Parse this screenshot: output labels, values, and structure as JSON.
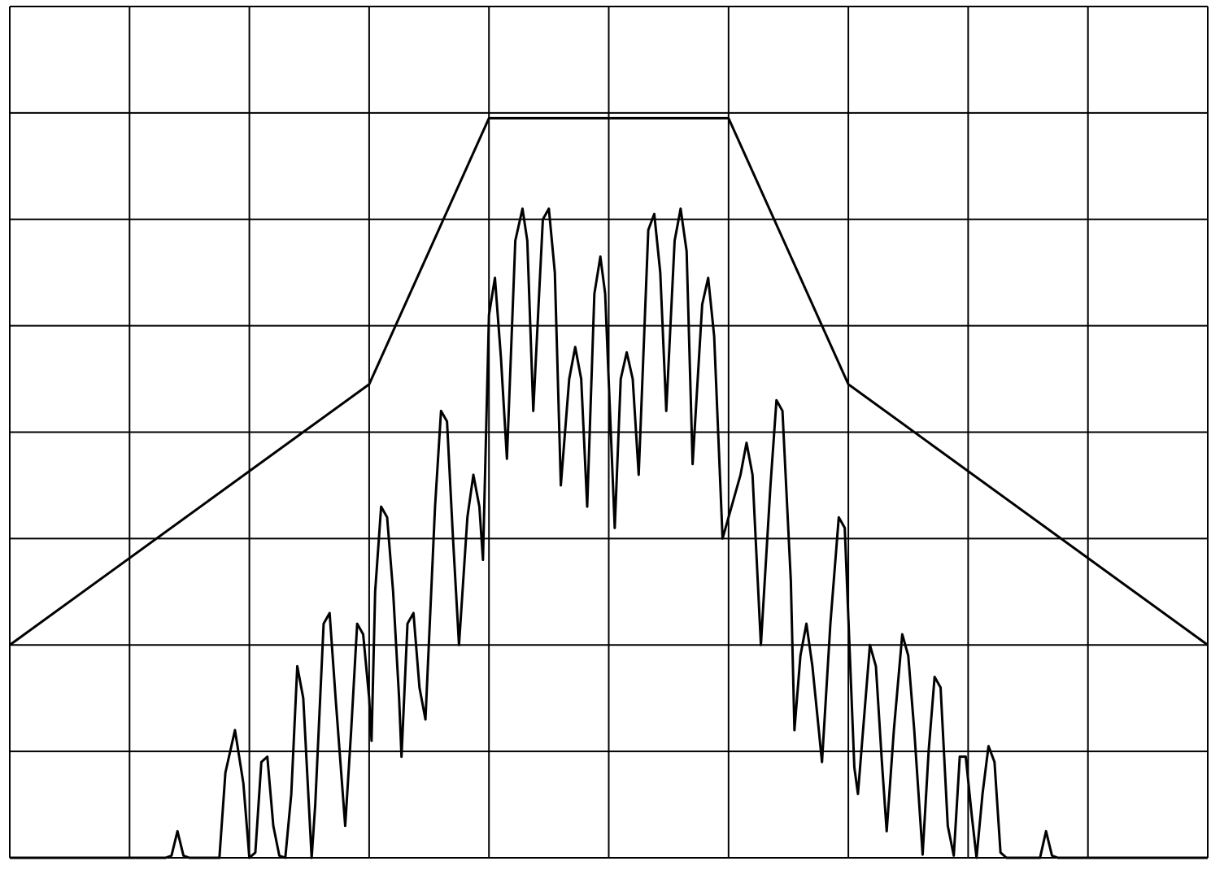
{
  "chart_data": {
    "type": "line",
    "title": "",
    "xlabel": "",
    "ylabel": "",
    "xlim": [
      0,
      10
    ],
    "ylim": [
      0,
      8
    ],
    "grid": true,
    "series": [
      {
        "role": "mask",
        "color": "#000000",
        "points": [
          [
            0,
            2
          ],
          [
            3,
            4.45
          ],
          [
            4,
            6.95
          ],
          [
            6,
            6.95
          ],
          [
            7,
            4.45
          ],
          [
            10,
            2
          ]
        ]
      },
      {
        "role": "spectrum",
        "color": "#000000",
        "points": [
          [
            0,
            0
          ],
          [
            1.3,
            0
          ],
          [
            1.35,
            0.02
          ],
          [
            1.4,
            0.25
          ],
          [
            1.45,
            0.02
          ],
          [
            1.5,
            0
          ],
          [
            1.75,
            0
          ],
          [
            1.8,
            0.8
          ],
          [
            1.88,
            1.2
          ],
          [
            1.95,
            0.7
          ],
          [
            2.0,
            0
          ],
          [
            2.05,
            0.05
          ],
          [
            2.1,
            0.9
          ],
          [
            2.15,
            0.95
          ],
          [
            2.2,
            0.3
          ],
          [
            2.25,
            0.02
          ],
          [
            2.3,
            0
          ],
          [
            2.35,
            0.6
          ],
          [
            2.4,
            1.8
          ],
          [
            2.45,
            1.5
          ],
          [
            2.52,
            0
          ],
          [
            2.55,
            0.5
          ],
          [
            2.62,
            2.2
          ],
          [
            2.67,
            2.3
          ],
          [
            2.72,
            1.5
          ],
          [
            2.8,
            0.3
          ],
          [
            2.85,
            1.2
          ],
          [
            2.9,
            2.2
          ],
          [
            2.95,
            2.1
          ],
          [
            3.0,
            1.5
          ],
          [
            3.02,
            1.1
          ],
          [
            3.05,
            2.5
          ],
          [
            3.1,
            3.3
          ],
          [
            3.15,
            3.2
          ],
          [
            3.2,
            2.5
          ],
          [
            3.25,
            1.5
          ],
          [
            3.27,
            0.95
          ],
          [
            3.32,
            2.2
          ],
          [
            3.37,
            2.3
          ],
          [
            3.42,
            1.6
          ],
          [
            3.47,
            1.3
          ],
          [
            3.55,
            3.3
          ],
          [
            3.6,
            4.2
          ],
          [
            3.65,
            4.1
          ],
          [
            3.7,
            3.0
          ],
          [
            3.75,
            2.0
          ],
          [
            3.82,
            3.2
          ],
          [
            3.87,
            3.6
          ],
          [
            3.92,
            3.3
          ],
          [
            3.95,
            2.8
          ],
          [
            4.0,
            5.1
          ],
          [
            4.05,
            5.45
          ],
          [
            4.1,
            4.7
          ],
          [
            4.15,
            3.75
          ],
          [
            4.22,
            5.8
          ],
          [
            4.28,
            6.1
          ],
          [
            4.32,
            5.8
          ],
          [
            4.37,
            4.2
          ],
          [
            4.45,
            6.0
          ],
          [
            4.5,
            6.1
          ],
          [
            4.55,
            5.5
          ],
          [
            4.6,
            3.5
          ],
          [
            4.67,
            4.5
          ],
          [
            4.72,
            4.8
          ],
          [
            4.77,
            4.5
          ],
          [
            4.82,
            3.3
          ],
          [
            4.88,
            5.3
          ],
          [
            4.93,
            5.65
          ],
          [
            4.97,
            5.3
          ],
          [
            5.05,
            3.1
          ],
          [
            5.1,
            4.5
          ],
          [
            5.15,
            4.75
          ],
          [
            5.2,
            4.5
          ],
          [
            5.25,
            3.6
          ],
          [
            5.33,
            5.9
          ],
          [
            5.38,
            6.05
          ],
          [
            5.43,
            5.5
          ],
          [
            5.48,
            4.2
          ],
          [
            5.55,
            5.8
          ],
          [
            5.6,
            6.1
          ],
          [
            5.65,
            5.7
          ],
          [
            5.7,
            3.7
          ],
          [
            5.78,
            5.2
          ],
          [
            5.83,
            5.45
          ],
          [
            5.88,
            4.9
          ],
          [
            5.95,
            3.0
          ],
          [
            6.1,
            3.6
          ],
          [
            6.15,
            3.9
          ],
          [
            6.2,
            3.6
          ],
          [
            6.27,
            2.0
          ],
          [
            6.35,
            3.5
          ],
          [
            6.4,
            4.3
          ],
          [
            6.45,
            4.2
          ],
          [
            6.52,
            2.6
          ],
          [
            6.55,
            1.2
          ],
          [
            6.6,
            1.9
          ],
          [
            6.65,
            2.2
          ],
          [
            6.7,
            1.8
          ],
          [
            6.78,
            0.9
          ],
          [
            6.85,
            2.2
          ],
          [
            6.92,
            3.2
          ],
          [
            6.97,
            3.1
          ],
          [
            7.05,
            0.85
          ],
          [
            7.08,
            0.6
          ],
          [
            7.13,
            1.3
          ],
          [
            7.18,
            2.0
          ],
          [
            7.23,
            1.8
          ],
          [
            7.28,
            0.9
          ],
          [
            7.32,
            0.25
          ],
          [
            7.38,
            1.2
          ],
          [
            7.45,
            2.1
          ],
          [
            7.5,
            1.9
          ],
          [
            7.55,
            1.2
          ],
          [
            7.62,
            0.03
          ],
          [
            7.67,
            1.0
          ],
          [
            7.72,
            1.7
          ],
          [
            7.77,
            1.6
          ],
          [
            7.83,
            0.3
          ],
          [
            7.88,
            0.02
          ],
          [
            7.93,
            0.95
          ],
          [
            7.98,
            0.95
          ],
          [
            8.03,
            0.4
          ],
          [
            8.07,
            0
          ],
          [
            8.12,
            0.6
          ],
          [
            8.17,
            1.05
          ],
          [
            8.22,
            0.9
          ],
          [
            8.27,
            0.05
          ],
          [
            8.32,
            0
          ],
          [
            8.6,
            0
          ],
          [
            8.65,
            0.25
          ],
          [
            8.7,
            0.02
          ],
          [
            8.75,
            0
          ],
          [
            10,
            0
          ]
        ]
      }
    ]
  }
}
